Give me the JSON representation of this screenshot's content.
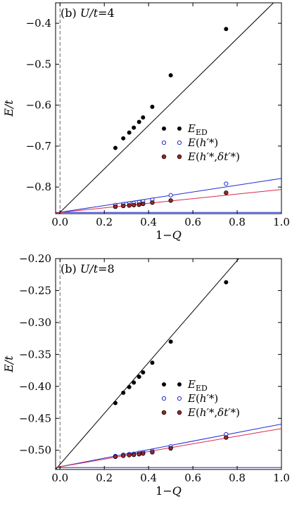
{
  "chart_data": [
    {
      "type": "scatter",
      "panel_label": "(b)",
      "title_param": "U/t",
      "title_value": "=4",
      "xlabel": "1−Q",
      "ylabel": "E/t",
      "xlim": [
        -0.02,
        1.0
      ],
      "ylim": [
        -0.865,
        -0.35
      ],
      "xticks": [
        0.0,
        0.2,
        0.4,
        0.6,
        0.8,
        1.0
      ],
      "xtick_labels": [
        "0.0",
        "0.2",
        "0.4",
        "0.6",
        "0.8",
        "1.0"
      ],
      "yticks": [
        -0.8,
        -0.7,
        -0.6,
        -0.5,
        -0.4
      ],
      "ytick_labels": [
        "−0.8",
        "−0.7",
        "−0.6",
        "−0.5",
        "−0.4"
      ],
      "dashed_vline_x": 0.0,
      "hline_y": -0.862,
      "series": [
        {
          "name": "E_ED",
          "marker": "filled-black",
          "x": [
            0.25,
            0.2857,
            0.3125,
            0.3333,
            0.3571,
            0.375,
            0.4167,
            0.5,
            0.75
          ],
          "y": [
            -0.7045,
            -0.681,
            -0.667,
            -0.655,
            -0.641,
            -0.63,
            -0.604,
            -0.527,
            -0.414
          ]
        },
        {
          "name": "E(h'*)",
          "marker": "open-blue",
          "x": [
            0.25,
            0.2857,
            0.3125,
            0.3333,
            0.3571,
            0.375,
            0.4167,
            0.5,
            0.75
          ],
          "y": [
            -0.844,
            -0.842,
            -0.84,
            -0.839,
            -0.837,
            -0.835,
            -0.831,
            -0.82,
            -0.792
          ]
        },
        {
          "name": "E(h'*,δt'*)",
          "marker": "filled-red",
          "x": [
            0.25,
            0.2857,
            0.3125,
            0.3333,
            0.3571,
            0.375,
            0.4167,
            0.5,
            0.75
          ],
          "y": [
            -0.848,
            -0.846,
            -0.845,
            -0.844,
            -0.843,
            -0.841,
            -0.838,
            -0.833,
            -0.814
          ]
        }
      ],
      "fit_lines": [
        {
          "series": "E_ED",
          "color": "#000000",
          "x": [
            -0.02,
            1.0
          ],
          "y": [
            -0.8725,
            -0.331
          ]
        },
        {
          "series": "E(h'*)",
          "color": "#1f2bd6",
          "x": [
            -0.02,
            1.0
          ],
          "y": [
            -0.8634,
            -0.779
          ]
        },
        {
          "series": "E(h'*,δt'*)",
          "color": "#d8284a",
          "x": [
            -0.02,
            1.0
          ],
          "y": [
            -0.8632,
            -0.806
          ]
        }
      ]
    },
    {
      "type": "scatter",
      "panel_label": "(b)",
      "title_param": "U/t",
      "title_value": "=8",
      "xlabel": "1−Q",
      "ylabel": "E/t",
      "xlim": [
        -0.02,
        1.0
      ],
      "ylim": [
        -0.53,
        -0.2
      ],
      "xticks": [
        0.0,
        0.2,
        0.4,
        0.6,
        0.8,
        1.0
      ],
      "xtick_labels": [
        "0.0",
        "0.2",
        "0.4",
        "0.6",
        "0.8",
        "1.0"
      ],
      "yticks": [
        -0.5,
        -0.45,
        -0.4,
        -0.35,
        -0.3,
        -0.25,
        -0.2
      ],
      "ytick_labels": [
        "−0.50",
        "−0.45",
        "−0.40",
        "−0.35",
        "−0.30",
        "−0.25",
        "−0.20"
      ],
      "dashed_vline_x": 0.0,
      "hline_y": -0.527,
      "series": [
        {
          "name": "E_ED",
          "marker": "filled-black",
          "x": [
            0.25,
            0.2857,
            0.3125,
            0.3333,
            0.3571,
            0.375,
            0.4167,
            0.5,
            0.75
          ],
          "y": [
            -0.426,
            -0.41,
            -0.401,
            -0.394,
            -0.385,
            -0.378,
            -0.363,
            -0.33,
            -0.237
          ]
        },
        {
          "name": "E(h'*)",
          "marker": "open-blue",
          "x": [
            0.25,
            0.2857,
            0.3125,
            0.3333,
            0.3571,
            0.375,
            0.4167,
            0.5,
            0.75
          ],
          "y": [
            -0.509,
            -0.507,
            -0.506,
            -0.5055,
            -0.504,
            -0.503,
            -0.501,
            -0.494,
            -0.475
          ]
        },
        {
          "name": "E(h'*,δt'*)",
          "marker": "filled-red",
          "x": [
            0.25,
            0.2857,
            0.3125,
            0.3333,
            0.3571,
            0.375,
            0.4167,
            0.5,
            0.75
          ],
          "y": [
            -0.51,
            -0.5085,
            -0.5075,
            -0.507,
            -0.506,
            -0.505,
            -0.503,
            -0.497,
            -0.48
          ]
        }
      ],
      "fit_lines": [
        {
          "series": "E_ED",
          "color": "#000000",
          "x": [
            -0.02,
            0.82
          ],
          "y": [
            -0.53,
            -0.195
          ]
        },
        {
          "series": "E(h'*)",
          "color": "#1f2bd6",
          "x": [
            -0.02,
            1.0
          ],
          "y": [
            -0.527,
            -0.459
          ]
        },
        {
          "series": "E(h'*,δt'*)",
          "color": "#d8284a",
          "x": [
            -0.02,
            1.0
          ],
          "y": [
            -0.527,
            -0.466
          ]
        }
      ]
    }
  ],
  "colors": {
    "ed": "#000000",
    "blue": "#1f2bd6",
    "red": "#d8284a",
    "red_fill": "#a0262a"
  }
}
